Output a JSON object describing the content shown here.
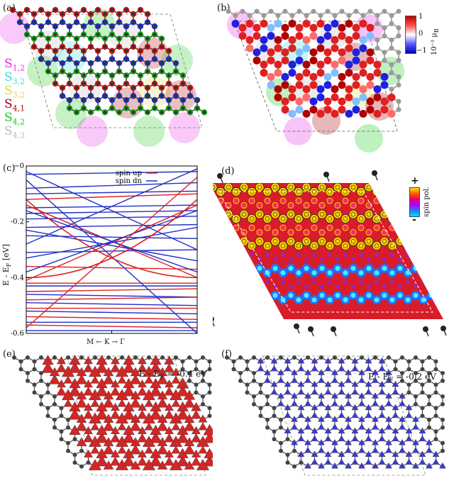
{
  "panels": {
    "a": {
      "label": "(a)"
    },
    "b": {
      "label": "(b)"
    },
    "c": {
      "label": "(c)"
    },
    "d": {
      "label": "(d)"
    },
    "e": {
      "label": "(e)"
    },
    "f": {
      "label": "(f)"
    }
  },
  "site_legend": [
    {
      "main": "S",
      "sub": "1,2",
      "color": "#e62be6"
    },
    {
      "main": "S",
      "sub": "3,2",
      "color": "#33dddd"
    },
    {
      "main": "S",
      "sub": "3,2",
      "color": "#d8d84a"
    },
    {
      "main": "S",
      "sub": "4,1",
      "color": "#a80000"
    },
    {
      "main": "S",
      "sub": "4,2",
      "color": "#18c818"
    },
    {
      "main": "S",
      "sub": "4,3",
      "color": "#bbbbbb"
    }
  ],
  "colorbar_b": {
    "max": "1",
    "mid": "0",
    "min": "−1",
    "unit": "10⁻³ μ",
    "unit_sub": "B"
  },
  "colorbar_d": {
    "max": "+",
    "min": "-",
    "label": "spin pol."
  },
  "chart_data": {
    "type": "line",
    "title": "",
    "ylabel": "E - E",
    "ylabel_sub": "F",
    "ylabel_unit": " [eV]",
    "xlabel": "M ← K → Γ",
    "ylim": [
      -0.6,
      0.0
    ],
    "yticks": [
      "−0",
      "-0.2",
      "-0.4",
      "-0.6"
    ],
    "grid": false,
    "legend_position": "top-right",
    "series": [
      {
        "name": "spin up",
        "color": "#e02020"
      },
      {
        "name": "spin dn",
        "color": "#2030c8"
      }
    ]
  },
  "annotations": {
    "e": {
      "pre": "E - E",
      "sub": "F",
      "post": " = -0.4 eV"
    },
    "f": {
      "pre": "E - E",
      "sub": "F",
      "post": " = -0.2 eV"
    }
  }
}
